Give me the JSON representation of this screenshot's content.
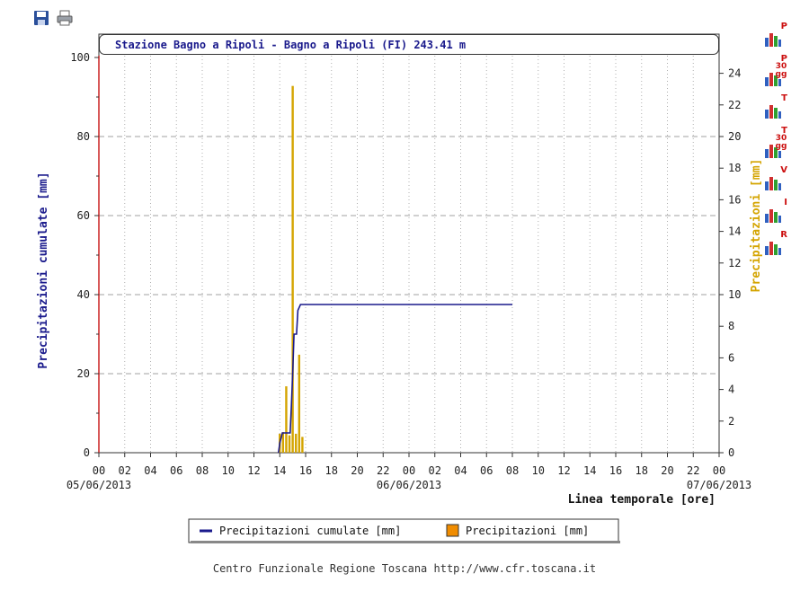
{
  "toolbar": {
    "save_icon": "floppy-disk-icon",
    "print_icon": "printer-icon"
  },
  "side_icons": [
    {
      "name": "chart-icon-p",
      "letter": "P",
      "sub": ""
    },
    {
      "name": "chart-icon-p-30gg",
      "letter": "P",
      "sub": "30 gg"
    },
    {
      "name": "chart-icon-t",
      "letter": "T",
      "sub": ""
    },
    {
      "name": "chart-icon-t-30gg",
      "letter": "T",
      "sub": "30 gg"
    },
    {
      "name": "chart-icon-v",
      "letter": "V",
      "sub": ""
    },
    {
      "name": "chart-icon-i",
      "letter": "I",
      "sub": ""
    },
    {
      "name": "chart-icon-r",
      "letter": "R",
      "sub": ""
    }
  ],
  "footer": "Centro Funzionale Regione Toscana http://www.cfr.toscana.it",
  "colors": {
    "cumulative": "#1a1a8c",
    "precip": "#d4a400",
    "precip_legend": "#f08c00",
    "left_axis_label": "#1a1a8c",
    "right_axis_label": "#d4a400",
    "left_axis_line": "#cc2020"
  },
  "chart_data": {
    "type": "bar+line",
    "title": "Stazione Bagno a Ripoli - Bagno a Ripoli (FI) 243.41 m",
    "ylabel_left": "Precipitazioni cumulate [mm]",
    "ylabel_right": "Precipitazioni [mm]",
    "xlabel": "Linea temporale [ore]",
    "ylim_left": [
      0,
      100
    ],
    "ylim_right": [
      0,
      25
    ],
    "yticks_left": [
      "0",
      "20",
      "40",
      "60",
      "80",
      "100"
    ],
    "yticks_right": [
      "0",
      "2",
      "4",
      "6",
      "8",
      "10",
      "12",
      "14",
      "16",
      "18",
      "20",
      "22",
      "24"
    ],
    "x_range_hours": [
      0,
      48
    ],
    "xticks": [
      "00",
      "02",
      "04",
      "06",
      "08",
      "10",
      "12",
      "14",
      "16",
      "18",
      "20",
      "22",
      "00",
      "02",
      "04",
      "06",
      "08",
      "10",
      "12",
      "14",
      "16",
      "18",
      "20",
      "22",
      "00"
    ],
    "date_labels": [
      "05/06/2013",
      "06/06/2013",
      "07/06/2013"
    ],
    "grid": true,
    "legend_position": "bottom",
    "series": [
      {
        "name": "Precipitazioni cumulate [mm]",
        "type": "line",
        "points": [
          [
            0,
            0
          ],
          [
            13.9,
            0
          ],
          [
            14.0,
            2.5
          ],
          [
            14.2,
            5
          ],
          [
            14.8,
            5
          ],
          [
            14.9,
            12
          ],
          [
            15.0,
            20
          ],
          [
            15.1,
            30
          ],
          [
            15.3,
            30
          ],
          [
            15.4,
            36
          ],
          [
            15.6,
            37.5
          ],
          [
            32,
            37.5
          ]
        ]
      },
      {
        "name": "Precipitazioni [mm]",
        "type": "bar",
        "points": [
          [
            14.0,
            1.2
          ],
          [
            14.25,
            1.3
          ],
          [
            14.5,
            4.2
          ],
          [
            14.75,
            1.1
          ],
          [
            15.0,
            23.2
          ],
          [
            15.25,
            1.2
          ],
          [
            15.5,
            6.2
          ],
          [
            15.75,
            1.0
          ]
        ]
      }
    ]
  }
}
